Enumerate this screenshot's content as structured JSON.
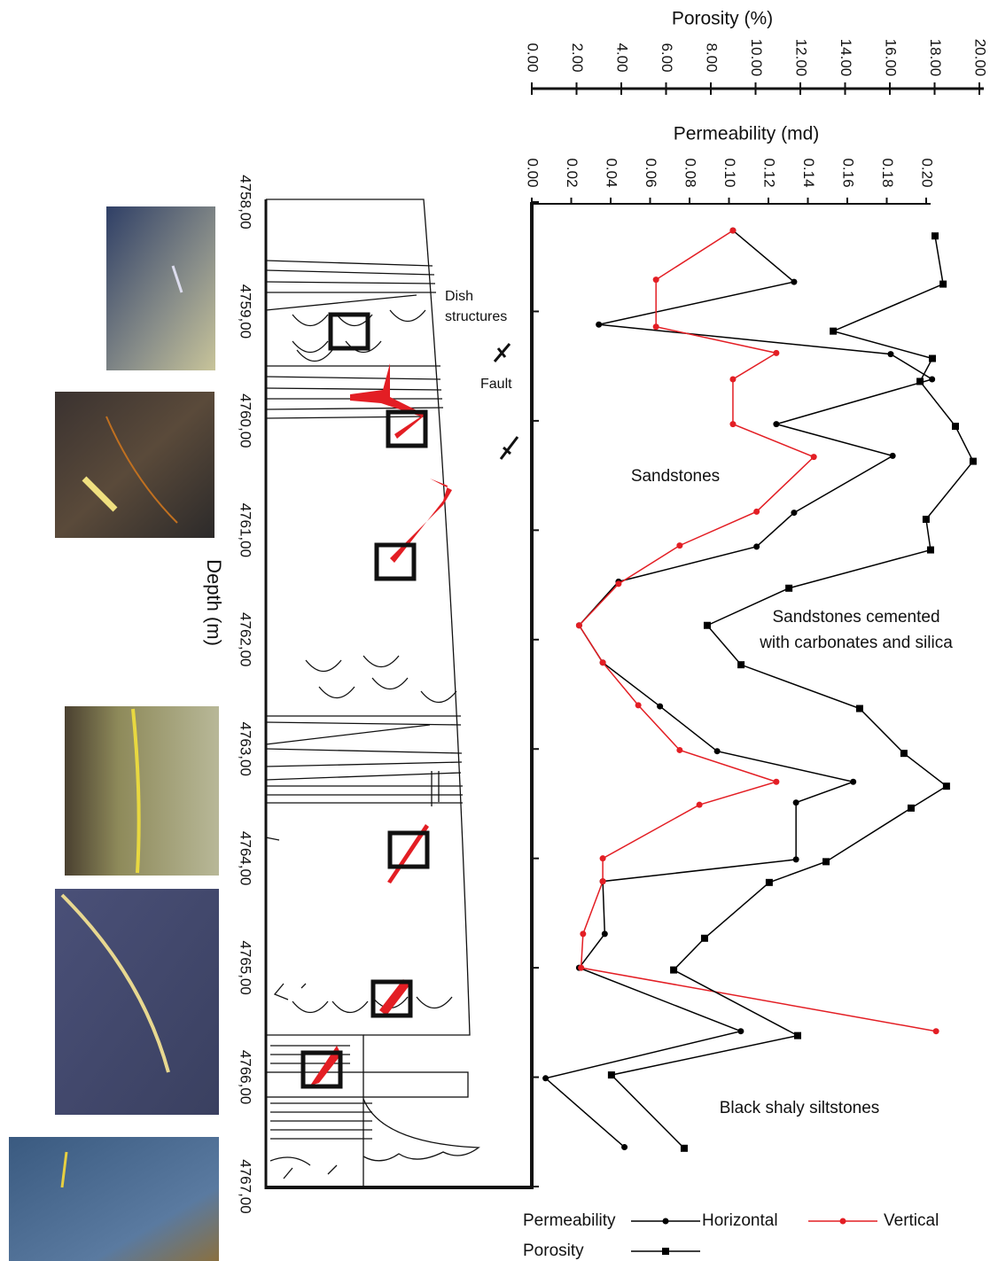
{
  "chart_data": {
    "type": "line",
    "depth_label": "Depth (m)",
    "ylim": [
      4758,
      4767
    ],
    "yticks": [
      {
        "value": 4758,
        "label": "4758,00"
      },
      {
        "value": 4759,
        "label": "4759,00"
      },
      {
        "value": 4760,
        "label": "4760,00"
      },
      {
        "value": 4761,
        "label": "4761,00"
      },
      {
        "value": 4762,
        "label": "4762,00"
      },
      {
        "value": 4763,
        "label": "4763,00"
      },
      {
        "value": 4764,
        "label": "4764,00"
      },
      {
        "value": 4765,
        "label": "4765,00"
      },
      {
        "value": 4766,
        "label": "4766,00"
      },
      {
        "value": 4767,
        "label": "4767,00"
      }
    ],
    "porosity_axis": {
      "label": "Porosity (%)",
      "xlim": [
        0,
        20
      ],
      "xticks": [
        {
          "value": 0,
          "label": "0.00"
        },
        {
          "value": 2,
          "label": "2.00"
        },
        {
          "value": 4,
          "label": "4.00"
        },
        {
          "value": 6,
          "label": "6.00"
        },
        {
          "value": 8,
          "label": "8.00"
        },
        {
          "value": 10,
          "label": "10.00"
        },
        {
          "value": 12,
          "label": "12.00"
        },
        {
          "value": 14,
          "label": "14.00"
        },
        {
          "value": 16,
          "label": "16.00"
        },
        {
          "value": 18,
          "label": "18.00"
        },
        {
          "value": 20,
          "label": "20.00"
        }
      ]
    },
    "permeability_axis": {
      "label": "Permeability (md)",
      "xlim": [
        0,
        0.2
      ],
      "xticks": [
        {
          "value": 0,
          "label": "0.00"
        },
        {
          "value": 0.02,
          "label": "0.02"
        },
        {
          "value": 0.04,
          "label": "0.04"
        },
        {
          "value": 0.06,
          "label": "0.06"
        },
        {
          "value": 0.08,
          "label": "0.08"
        },
        {
          "value": 0.1,
          "label": "0.10"
        },
        {
          "value": 0.12,
          "label": "0.12"
        },
        {
          "value": 0.14,
          "label": "0.14"
        },
        {
          "value": 0.16,
          "label": "0.16"
        },
        {
          "value": 0.18,
          "label": "0.18"
        },
        {
          "value": 0.2,
          "label": "0.20"
        }
      ]
    },
    "legend_group": "Permeability",
    "series": [
      {
        "name": "Horizontal",
        "axis": "permeability",
        "color": "#000000",
        "marker": "circle",
        "depth": [
          4758.26,
          4758.73,
          4759.12,
          4759.39,
          4759.62,
          4760.03,
          4760.32,
          4760.84,
          4761.15,
          4761.47,
          4761.87,
          4762.21,
          4762.61,
          4763.02,
          4763.3,
          4763.49,
          4764.01,
          4764.21,
          4764.69,
          4765.0,
          4765.58,
          4766.01,
          4766.64
        ],
        "values": [
          0.102,
          0.133,
          0.034,
          0.182,
          0.203,
          0.124,
          0.183,
          0.133,
          0.114,
          0.044,
          0.024,
          0.036,
          0.065,
          0.094,
          0.163,
          0.134,
          0.134,
          0.036,
          0.037,
          0.024,
          0.106,
          0.007,
          0.047
        ]
      },
      {
        "name": "Vertical",
        "axis": "permeability",
        "color": "#e31e24",
        "marker": "circle",
        "depth": [
          4758.26,
          4758.71,
          4759.14,
          4759.38,
          4759.62,
          4760.03,
          4760.33,
          4760.83,
          4761.14,
          4761.49,
          4761.87,
          4762.21,
          4762.6,
          4763.01,
          4763.3,
          4763.51,
          4764.0,
          4764.21,
          4764.69,
          4765.0,
          4765.58
        ],
        "values": [
          0.102,
          0.063,
          0.063,
          0.124,
          0.102,
          0.102,
          0.143,
          0.114,
          0.075,
          0.044,
          0.024,
          0.036,
          0.054,
          0.075,
          0.124,
          0.085,
          0.036,
          0.036,
          0.026,
          0.025,
          0.205
        ]
      },
      {
        "name": "Porosity",
        "axis": "porosity",
        "color": "#000000",
        "marker": "square",
        "depth": [
          4758.31,
          4758.75,
          4759.18,
          4759.43,
          4759.64,
          4760.05,
          4760.37,
          4760.9,
          4761.18,
          4761.53,
          4761.87,
          4762.23,
          4762.63,
          4763.04,
          4763.34,
          4763.54,
          4764.03,
          4764.22,
          4764.73,
          4765.02,
          4765.62,
          4765.98,
          4766.65
        ],
        "values": [
          18.02,
          18.38,
          13.47,
          17.9,
          17.35,
          18.93,
          19.72,
          17.62,
          17.82,
          11.49,
          7.84,
          9.35,
          14.65,
          16.63,
          18.53,
          16.95,
          13.15,
          10.61,
          7.72,
          6.34,
          11.88,
          3.56,
          6.81
        ]
      }
    ],
    "annotations": [
      "Sandstones",
      "Sandstones cemented",
      "with carbonates and silica",
      "Black shaly siltstones",
      "Dish",
      "structures",
      "Fault"
    ]
  }
}
